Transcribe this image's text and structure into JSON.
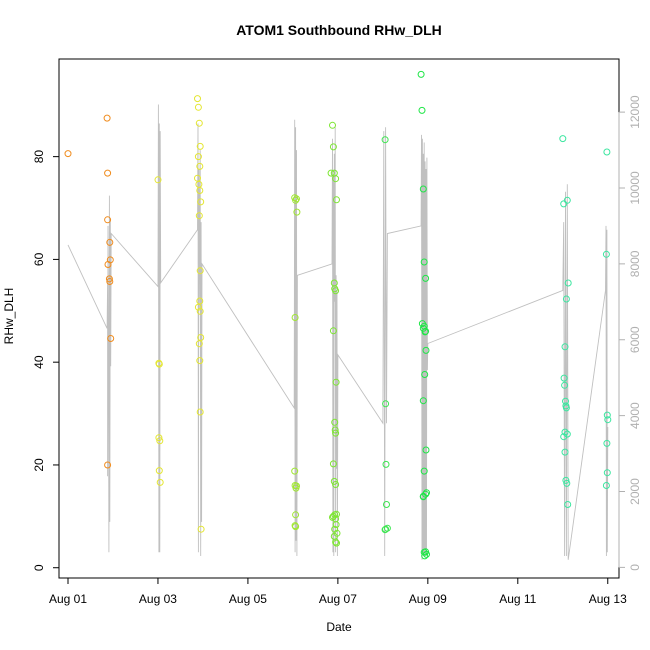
{
  "chart_data": {
    "type": "scatter",
    "title": "ATOM1 Southbound RHw_DLH",
    "xlabel": "Date",
    "ylabel": "RHw_DLH",
    "x_ticks": [
      "Aug 01",
      "Aug 03",
      "Aug 05",
      "Aug 07",
      "Aug 09",
      "Aug 11",
      "Aug 13"
    ],
    "x_tick_days": [
      1,
      3,
      5,
      7,
      9,
      11,
      13
    ],
    "xlim_days": [
      0.8,
      13.25
    ],
    "ylim": [
      -2,
      99
    ],
    "y_ticks": [
      0,
      20,
      40,
      60,
      80
    ],
    "y2lim": [
      -280,
      13400
    ],
    "y2_ticks": [
      0,
      2000,
      4000,
      6000,
      8000,
      10000,
      12000
    ],
    "y2_tick_labels": [
      "0",
      "2000",
      "4000",
      "6000",
      "8000",
      "10000",
      "12000"
    ],
    "colors": {
      "line": "#c0c0c0",
      "frame": "#000000",
      "right_axis": "#b0b0b0",
      "day1": "#f08c1e",
      "day2": "#f08c1e",
      "day3": "#e4e632",
      "day4": "#e4e632",
      "day6": "#a0e632",
      "day7": "#7de632",
      "day8": "#3ce650",
      "day9": "#1ee646",
      "day12": "#3ce6a0",
      "day13": "#3ce6a0"
    },
    "series": [
      {
        "key": "day1",
        "x": [
          1.0
        ],
        "y": [
          80.6
        ]
      },
      {
        "key": "day2",
        "x": [
          1.87,
          1.88,
          1.88,
          1.89,
          1.92,
          1.93,
          1.93,
          1.94,
          1.95,
          1.88
        ],
        "y": [
          87.5,
          76.8,
          67.7,
          59.0,
          56.2,
          55.7,
          63.3,
          59.9,
          44.6,
          20.0
        ]
      },
      {
        "key": "day3",
        "x": [
          3.0,
          3.02,
          3.03,
          3.02,
          3.04,
          3.03,
          3.05
        ],
        "y": [
          75.5,
          39.8,
          39.6,
          25.3,
          24.7,
          18.9,
          16.6
        ]
      },
      {
        "key": "day4",
        "x": [
          3.88,
          3.9,
          3.92,
          3.94,
          3.9,
          3.93,
          3.88,
          3.91,
          3.93,
          3.95,
          3.92,
          3.94,
          3.93,
          3.9,
          3.94,
          3.95,
          3.92,
          3.93,
          3.94,
          3.96
        ],
        "y": [
          91.3,
          89.6,
          86.5,
          82.0,
          80.0,
          78.1,
          75.8,
          74.6,
          73.4,
          71.2,
          68.5,
          57.8,
          51.9,
          50.7,
          49.9,
          44.8,
          43.6,
          40.3,
          30.3,
          7.5
        ]
      },
      {
        "key": "day6",
        "x": [
          6.04,
          6.06,
          6.08,
          6.09,
          6.05,
          6.04,
          6.05,
          6.07,
          6.08,
          6.06,
          6.05,
          6.06
        ],
        "y": [
          72.0,
          71.5,
          71.8,
          69.2,
          48.7,
          18.8,
          16.0,
          15.5,
          15.9,
          10.3,
          8.2,
          8.0
        ]
      },
      {
        "key": "day7",
        "x": [
          6.85,
          6.88,
          6.9,
          6.92,
          6.95,
          6.97,
          6.92,
          6.93,
          6.95,
          6.9,
          6.96,
          6.93,
          6.94,
          6.95,
          6.9,
          6.92,
          6.95,
          6.97,
          6.9,
          6.88,
          6.93,
          6.95,
          6.96,
          6.93,
          6.98,
          6.92,
          6.95,
          6.97
        ],
        "y": [
          76.8,
          86.1,
          81.9,
          76.8,
          75.7,
          71.6,
          55.4,
          54.3,
          53.9,
          46.1,
          36.1,
          28.3,
          26.8,
          26.2,
          20.2,
          16.8,
          16.2,
          10.4,
          10.0,
          9.8,
          10.3,
          9.5,
          8.4,
          7.5,
          6.7,
          6.1,
          5.0,
          4.8
        ]
      },
      {
        "key": "day8",
        "x": [
          8.05,
          8.06,
          8.07,
          8.08,
          8.1,
          8.05,
          8.06
        ],
        "y": [
          83.3,
          31.9,
          20.1,
          12.3,
          7.7,
          7.4,
          7.5
        ]
      },
      {
        "key": "day9",
        "x": [
          8.85,
          8.87,
          8.9,
          8.92,
          8.95,
          8.95,
          8.88,
          8.9,
          8.92,
          8.94,
          8.96,
          8.9,
          8.93,
          8.96,
          8.92,
          8.9,
          8.95,
          8.97,
          8.92,
          8.95,
          8.93,
          8.9,
          8.97
        ],
        "y": [
          96.0,
          89.0,
          73.7,
          59.5,
          56.3,
          46.0,
          47.5,
          46.6,
          47.0,
          45.9,
          42.3,
          32.5,
          37.6,
          22.9,
          18.8,
          13.9,
          14.3,
          14.6,
          3.0,
          3.1,
          2.3,
          13.8,
          2.6
        ]
      },
      {
        "key": "day12",
        "x": [
          12.0,
          12.02,
          12.1,
          12.12,
          12.08,
          12.05,
          12.03,
          12.04,
          12.06,
          12.08,
          12.1,
          12.02,
          12.05,
          12.07,
          12.09,
          12.11,
          12.05,
          12.07
        ],
        "y": [
          83.5,
          70.8,
          71.5,
          55.4,
          52.3,
          43.0,
          36.9,
          35.5,
          32.4,
          31.1,
          26.0,
          25.5,
          22.5,
          17.0,
          16.4,
          12.3,
          26.4,
          31.5
        ]
      },
      {
        "key": "day13",
        "x": [
          12.98,
          12.97,
          12.99,
          13.0,
          12.98,
          12.99,
          12.97
        ],
        "y": [
          80.9,
          61.0,
          29.7,
          28.8,
          24.2,
          18.5,
          16.0
        ]
      }
    ],
    "line_series": {
      "x": [
        1.0,
        1.87,
        1.88,
        1.88,
        1.89,
        1.9,
        1.91,
        1.92,
        1.93,
        1.94,
        1.95,
        1.96,
        3.0,
        3.01,
        3.02,
        3.03,
        3.04,
        3.05,
        3.06,
        3.88,
        3.89,
        3.9,
        3.91,
        3.92,
        3.93,
        3.94,
        3.95,
        3.96,
        3.97,
        3.98,
        6.03,
        6.04,
        6.05,
        6.06,
        6.07,
        6.08,
        6.09,
        6.1,
        6.87,
        6.88,
        6.89,
        6.9,
        6.91,
        6.92,
        6.93,
        6.94,
        6.95,
        6.96,
        6.97,
        6.98,
        6.99,
        7.0,
        8.0,
        8.02,
        8.04,
        8.06,
        8.08,
        8.1,
        8.85,
        8.86,
        8.87,
        8.88,
        8.89,
        8.9,
        8.91,
        8.92,
        8.93,
        8.94,
        8.95,
        8.96,
        8.97,
        8.98,
        8.99,
        9.0,
        12.0,
        12.02,
        12.04,
        12.06,
        12.08,
        12.1,
        12.12,
        12.95,
        12.96,
        12.97,
        12.98,
        12.99,
        13.0
      ],
      "y": [
        8500,
        6300,
        7500,
        2400,
        9000,
        5200,
        400,
        9800,
        1200,
        9200,
        5300,
        8800,
        7400,
        12200,
        400,
        11700,
        400,
        11500,
        7500,
        8900,
        11700,
        400,
        10500,
        6800,
        9500,
        11000,
        300,
        9100,
        1200,
        8000,
        4200,
        11800,
        400,
        11600,
        700,
        11000,
        300,
        7700,
        8000,
        11300,
        400,
        10300,
        300,
        10900,
        7000,
        11600,
        400,
        7700,
        2600,
        7300,
        300,
        5600,
        3800,
        11500,
        300,
        11600,
        3800,
        8800,
        9000,
        11400,
        200,
        11300,
        400,
        10900,
        300,
        11200,
        400,
        10700,
        300,
        10500,
        300,
        10800,
        5200,
        5900,
        7300,
        9100,
        300,
        9900,
        300,
        10100,
        200,
        7300,
        9000,
        300,
        8900,
        400,
        3700
      ]
    }
  }
}
